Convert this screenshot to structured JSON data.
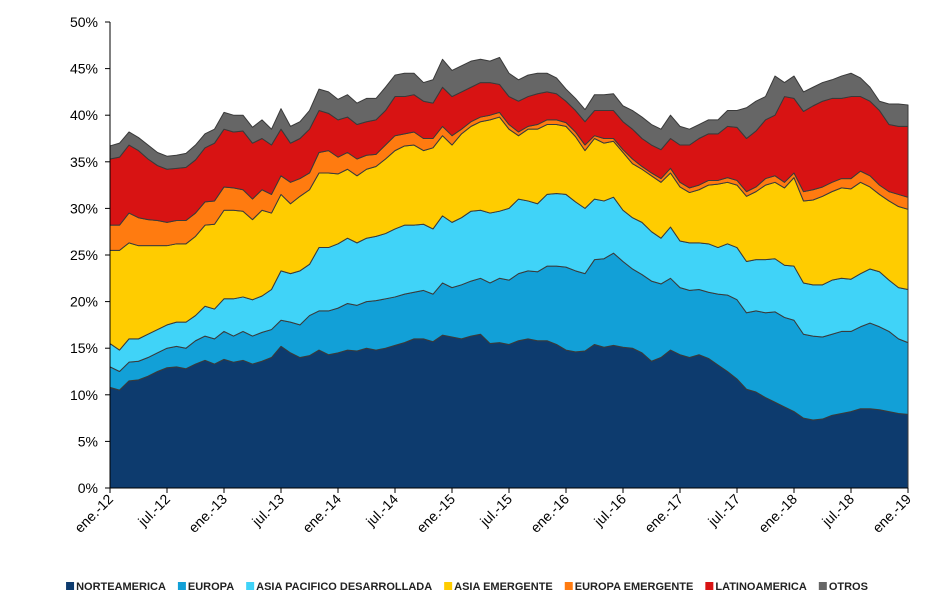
{
  "chart_data": {
    "type": "stacked-area",
    "categories": [
      "ene.-12",
      null,
      null,
      null,
      null,
      null,
      "jul.-12",
      null,
      null,
      null,
      null,
      null,
      "ene.-13",
      null,
      null,
      null,
      null,
      null,
      "jul.-13",
      null,
      null,
      null,
      null,
      null,
      "ene.-14",
      null,
      null,
      null,
      null,
      null,
      "jul.-14",
      null,
      null,
      null,
      null,
      null,
      "ene.-15",
      null,
      null,
      null,
      null,
      null,
      "jul.-15",
      null,
      null,
      null,
      null,
      null,
      "ene.-16",
      null,
      null,
      null,
      null,
      null,
      "jul.-16",
      null,
      null,
      null,
      null,
      null,
      "ene.-17",
      null,
      null,
      null,
      null,
      null,
      "jul.-17",
      null,
      null,
      null,
      null,
      null,
      "ene.-18",
      null,
      null,
      null,
      null,
      null,
      "jul.-18",
      null,
      null,
      null,
      null,
      null,
      "ene.-19"
    ],
    "ylim": [
      0,
      50
    ],
    "yticks": [
      {
        "value": 0,
        "label": "0%"
      },
      {
        "value": 5,
        "label": "5%"
      },
      {
        "value": 10,
        "label": "10%"
      },
      {
        "value": 15,
        "label": "15%"
      },
      {
        "value": 20,
        "label": "20%"
      },
      {
        "value": 25,
        "label": "25%"
      },
      {
        "value": 30,
        "label": "30%"
      },
      {
        "value": 35,
        "label": "35%"
      },
      {
        "value": 40,
        "label": "40%"
      },
      {
        "value": 45,
        "label": "45%"
      },
      {
        "value": 50,
        "label": "50%"
      }
    ],
    "grid": false,
    "legend": "bottom",
    "series": [
      {
        "name": "NORTEAMERICA",
        "color": "#0d3b6e",
        "values": [
          10.8,
          10.5,
          11.5,
          11.6,
          12,
          12.5,
          12.9,
          13,
          12.8,
          13.3,
          13.7,
          13.3,
          13.8,
          13.5,
          13.7,
          13.3,
          13.6,
          14,
          15.2,
          14.5,
          14,
          14.2,
          14.8,
          14.3,
          14.5,
          14.8,
          14.7,
          15,
          14.8,
          15,
          15.3,
          15.6,
          16,
          16,
          15.7,
          16.4,
          16.2,
          16,
          16.3,
          16.5,
          15.5,
          15.6,
          15.4,
          15.8,
          16,
          15.8,
          15.8,
          15.4,
          14.8,
          14.6,
          14.7,
          15.4,
          15.1,
          15.3,
          15.1,
          15,
          14.5,
          13.6,
          14,
          14.8,
          14.3,
          14,
          14.3,
          13.9,
          13.2,
          12.5,
          11.7,
          10.6,
          10.3,
          9.7,
          9.2,
          8.7,
          8.2,
          7.5,
          7.3,
          7.4,
          7.8,
          8,
          8.2,
          8.5,
          8.5,
          8.4,
          8.2,
          8,
          7.9
        ]
      },
      {
        "name": "EUROPA",
        "color": "#12a0d7",
        "values": [
          2.2,
          2.0,
          2.0,
          2.0,
          2.0,
          2.0,
          2.1,
          2.2,
          2.2,
          2.5,
          2.6,
          2.7,
          3.0,
          2.8,
          3.1,
          3.0,
          3.1,
          3.0,
          2.8,
          3.3,
          3.5,
          4.3,
          4.2,
          4.7,
          4.8,
          5.0,
          4.9,
          5.0,
          5.3,
          5.3,
          5.2,
          5.2,
          5.0,
          5.2,
          5.1,
          5.6,
          5.3,
          5.8,
          5.9,
          6.0,
          6.5,
          6.9,
          6.9,
          7.2,
          7.3,
          7.4,
          8.0,
          8.4,
          8.9,
          8.7,
          8.3,
          9.1,
          9.5,
          9.9,
          9.2,
          8.5,
          8.4,
          8.6,
          7.9,
          7.7,
          7.2,
          7.2,
          7.0,
          7.1,
          7.6,
          8.2,
          8.5,
          8.2,
          8.7,
          9.1,
          9.7,
          9.6,
          9.8,
          9.0,
          9.0,
          8.8,
          8.7,
          8.8,
          8.6,
          8.8,
          9.2,
          8.9,
          8.6,
          8.0,
          7.7
        ]
      },
      {
        "name": "ASIA PACIFICO DESARROLLADA",
        "color": "#40d3f8",
        "values": [
          2.5,
          2.3,
          2.5,
          2.4,
          2.5,
          2.5,
          2.5,
          2.6,
          2.8,
          2.7,
          3.2,
          3.2,
          3.5,
          4.0,
          3.7,
          3.9,
          3.9,
          4.3,
          5.3,
          5.2,
          5.8,
          5.5,
          6.8,
          6.8,
          6.9,
          7.0,
          6.7,
          6.8,
          6.9,
          7.0,
          7.3,
          7.4,
          7.2,
          7.1,
          7.0,
          7.2,
          7.0,
          7.2,
          7.5,
          7.3,
          7.5,
          7.2,
          7.7,
          8.0,
          7.5,
          7.3,
          7.7,
          7.8,
          7.8,
          7.4,
          7.0,
          6.5,
          6.2,
          6.0,
          5.5,
          5.5,
          5.6,
          5.3,
          4.9,
          5.5,
          5.0,
          5.1,
          5.0,
          5.2,
          5.0,
          5.5,
          5.6,
          5.5,
          5.5,
          5.7,
          5.7,
          5.6,
          5.8,
          5.5,
          5.5,
          5.6,
          5.8,
          5.7,
          5.6,
          5.7,
          5.8,
          5.9,
          5.5,
          5.5,
          5.7
        ]
      },
      {
        "name": "ASIA EMERGENTE",
        "color": "#ffcc00",
        "values": [
          10.0,
          10.7,
          10.3,
          10.0,
          9.5,
          9.0,
          8.5,
          8.4,
          8.4,
          8.5,
          8.7,
          9.1,
          9.5,
          9.5,
          9.2,
          8.6,
          9.2,
          8.2,
          8.2,
          7.5,
          8.0,
          8.0,
          8.0,
          8.0,
          7.5,
          7.4,
          7.2,
          7.4,
          7.5,
          8.0,
          8.4,
          8.5,
          8.6,
          7.9,
          8.7,
          8.6,
          8.3,
          9.0,
          9.1,
          9.5,
          10.0,
          10.1,
          8.5,
          6.8,
          7.7,
          8.0,
          7.5,
          7.4,
          7.3,
          7.0,
          6.2,
          6.5,
          6.2,
          6.0,
          6.2,
          5.8,
          5.7,
          6.0,
          6.0,
          5.8,
          5.8,
          5.4,
          5.7,
          6.3,
          6.8,
          6.6,
          6.7,
          7.0,
          7.3,
          8.0,
          8.2,
          8.3,
          9.5,
          8.8,
          9.1,
          9.5,
          9.5,
          9.7,
          9.7,
          9.8,
          8.8,
          8.3,
          8.5,
          8.7,
          8.6
        ]
      },
      {
        "name": "EUROPA EMERGENTE",
        "color": "#ff7b10",
        "values": [
          2.7,
          2.7,
          3.2,
          3.0,
          2.8,
          2.7,
          2.5,
          2.5,
          2.5,
          2.5,
          2.5,
          2.5,
          2.5,
          2.4,
          2.3,
          2.2,
          2.2,
          2.0,
          2.0,
          2.3,
          1.9,
          1.8,
          2.2,
          2.4,
          1.8,
          1.8,
          1.8,
          1.5,
          1.3,
          1.5,
          1.6,
          1.3,
          1.4,
          1.3,
          1.0,
          1.0,
          1.0,
          0.5,
          0.5,
          0.5,
          0.5,
          0.5,
          0.5,
          0.4,
          0.3,
          0.5,
          0.5,
          0.5,
          0.4,
          0.5,
          0.6,
          0.3,
          0.5,
          0.3,
          0.3,
          0.5,
          0.3,
          0.3,
          0.4,
          0.5,
          0.5,
          0.5,
          0.5,
          0.5,
          0.4,
          0.5,
          0.5,
          0.5,
          0.5,
          0.7,
          0.7,
          0.6,
          0.5,
          1.0,
          1.1,
          1.0,
          1.0,
          1.0,
          1.1,
          1.2,
          1.2,
          1.0,
          1.0,
          1.3,
          1.3
        ]
      },
      {
        "name": "LATINOAMERICA",
        "color": "#d81313",
        "values": [
          7.1,
          7.3,
          7.3,
          7.2,
          6.5,
          5.9,
          5.7,
          5.6,
          5.7,
          5.7,
          5.8,
          6.2,
          6.2,
          6.0,
          6.3,
          6.0,
          5.5,
          5.3,
          5.0,
          4.2,
          4.3,
          4.7,
          4.5,
          4.0,
          4.0,
          3.8,
          3.7,
          3.6,
          3.7,
          3.7,
          4.2,
          4.0,
          4.0,
          4.0,
          3.8,
          4.2,
          4.2,
          4.0,
          3.7,
          3.7,
          3.5,
          3.0,
          3.0,
          3.3,
          3.2,
          3.3,
          3.0,
          2.8,
          2.3,
          2.3,
          2.5,
          2.7,
          3.0,
          3.0,
          3.0,
          3.2,
          3.0,
          3.0,
          3.1,
          3.2,
          4.0,
          4.6,
          5.0,
          5.0,
          5.0,
          5.5,
          5.7,
          5.7,
          6.0,
          6.3,
          6.5,
          9.2,
          8.0,
          8.6,
          9.0,
          9.2,
          9.0,
          8.6,
          8.8,
          8.0,
          8.0,
          8.0,
          7.2,
          7.3,
          7.6
        ]
      },
      {
        "name": "OTROS",
        "color": "#666666",
        "values": [
          1.4,
          1.5,
          1.4,
          1.4,
          1.5,
          1.4,
          1.4,
          1.4,
          1.5,
          1.6,
          1.5,
          1.5,
          1.8,
          1.8,
          1.7,
          1.7,
          2.0,
          1.7,
          2.2,
          1.8,
          1.8,
          2.0,
          2.3,
          2.3,
          2.2,
          2.4,
          2.3,
          2.5,
          2.3,
          2.5,
          2.3,
          2.5,
          2.3,
          2.0,
          2.5,
          3.0,
          2.8,
          2.8,
          2.8,
          2.5,
          2.3,
          2.9,
          2.5,
          2.3,
          2.3,
          2.2,
          2.0,
          1.7,
          1.3,
          1.3,
          1.3,
          1.7,
          1.7,
          1.8,
          1.7,
          2.0,
          2.3,
          2.2,
          2.2,
          2.5,
          2.0,
          1.7,
          1.5,
          1.5,
          1.5,
          1.7,
          1.8,
          3.3,
          3.2,
          2.5,
          4.2,
          1.5,
          2.4,
          2.1,
          2.0,
          2.0,
          2.0,
          2.4,
          2.5,
          2.0,
          1.5,
          1.0,
          2.2,
          2.4,
          2.3
        ]
      }
    ]
  }
}
